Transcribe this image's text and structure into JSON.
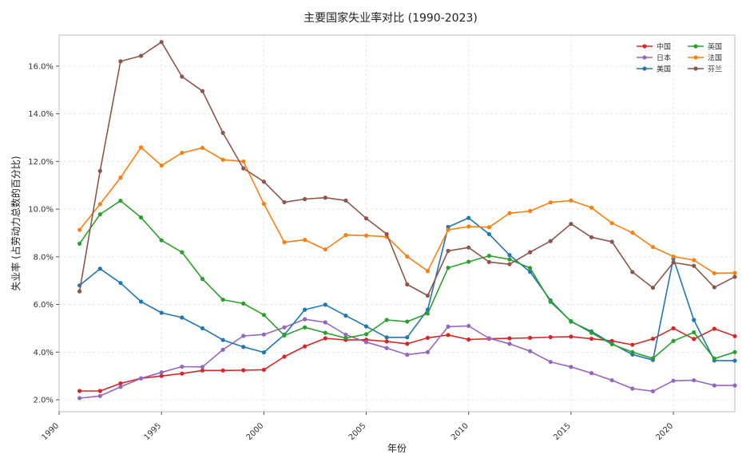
{
  "chart_data": {
    "type": "line",
    "title": "主要国家失业率对比 (1990-2023)",
    "xlabel": "年份",
    "ylabel": "失业率 (占劳动力总数的百分比)",
    "xlim": [
      1990,
      2023
    ],
    "ylim": [
      1.5,
      17.3
    ],
    "x_ticks": [
      1990,
      1995,
      2000,
      2005,
      2010,
      2015,
      2020
    ],
    "y_ticks": [
      {
        "v": 2,
        "label": "2.0%"
      },
      {
        "v": 4,
        "label": "4.0%"
      },
      {
        "v": 6,
        "label": "6.0%"
      },
      {
        "v": 8,
        "label": "8.0%"
      },
      {
        "v": 10,
        "label": "10.0%"
      },
      {
        "v": 12,
        "label": "12.0%"
      },
      {
        "v": 14,
        "label": "14.0%"
      },
      {
        "v": 16,
        "label": "16.0%"
      }
    ],
    "grid": true,
    "legend_position": "top-right",
    "x": [
      1991,
      1992,
      1993,
      1994,
      1995,
      1996,
      1997,
      1998,
      1999,
      2000,
      2001,
      2002,
      2003,
      2004,
      2005,
      2006,
      2007,
      2008,
      2009,
      2010,
      2011,
      2012,
      2013,
      2014,
      2015,
      2016,
      2017,
      2018,
      2019,
      2020,
      2021,
      2022,
      2023
    ],
    "series": [
      {
        "name": "中国",
        "color": "#d62728",
        "values": [
          2.37,
          2.37,
          2.69,
          2.9,
          3.0,
          3.1,
          3.23,
          3.23,
          3.24,
          3.26,
          3.81,
          4.24,
          4.58,
          4.51,
          4.52,
          4.45,
          4.35,
          4.6,
          4.72,
          4.53,
          4.56,
          4.58,
          4.6,
          4.63,
          4.65,
          4.56,
          4.47,
          4.31,
          4.56,
          5.0,
          4.55,
          4.98,
          4.67
        ]
      },
      {
        "name": "日本",
        "color": "#9467bd",
        "values": [
          2.07,
          2.16,
          2.54,
          2.9,
          3.15,
          3.39,
          3.38,
          4.1,
          4.68,
          4.74,
          5.04,
          5.38,
          5.25,
          4.73,
          4.42,
          4.17,
          3.89,
          4.0,
          5.07,
          5.1,
          4.58,
          4.35,
          4.04,
          3.59,
          3.38,
          3.12,
          2.82,
          2.47,
          2.36,
          2.8,
          2.82,
          2.6,
          2.6
        ]
      },
      {
        "name": "美国",
        "color": "#1f77b4",
        "values": [
          6.8,
          7.5,
          6.9,
          6.12,
          5.65,
          5.45,
          5.0,
          4.51,
          4.22,
          3.99,
          4.73,
          5.78,
          5.99,
          5.53,
          5.08,
          4.62,
          4.62,
          5.78,
          9.25,
          9.63,
          8.95,
          8.07,
          7.37,
          6.17,
          5.28,
          4.87,
          4.36,
          3.9,
          3.67,
          7.93,
          5.35,
          3.65,
          3.64
        ]
      },
      {
        "name": "英国",
        "color": "#2ca02c",
        "values": [
          8.55,
          9.78,
          10.35,
          9.65,
          8.69,
          8.19,
          7.07,
          6.2,
          6.04,
          5.56,
          4.7,
          5.04,
          4.81,
          4.59,
          4.75,
          5.35,
          5.28,
          5.62,
          7.54,
          7.79,
          8.04,
          7.89,
          7.53,
          6.11,
          5.3,
          4.81,
          4.33,
          4.0,
          3.74,
          4.47,
          4.83,
          3.73,
          4.0
        ]
      },
      {
        "name": "法国",
        "color": "#ff7f0e",
        "values": [
          9.13,
          10.21,
          11.32,
          12.59,
          11.83,
          12.36,
          12.57,
          12.07,
          12.0,
          10.22,
          8.61,
          8.71,
          8.31,
          8.91,
          8.89,
          8.84,
          8.01,
          7.4,
          9.13,
          9.27,
          9.24,
          9.83,
          9.92,
          10.28,
          10.36,
          10.06,
          9.41,
          9.01,
          8.41,
          8.01,
          7.86,
          7.31,
          7.32
        ]
      },
      {
        "name": "芬兰",
        "color": "#8c564b",
        "values": [
          6.55,
          11.6,
          16.2,
          16.43,
          17.01,
          15.56,
          14.95,
          13.2,
          11.71,
          11.15,
          10.29,
          10.42,
          10.48,
          10.36,
          9.61,
          8.95,
          6.84,
          6.37,
          8.25,
          8.39,
          7.78,
          7.69,
          8.19,
          8.66,
          9.38,
          8.82,
          8.63,
          7.36,
          6.7,
          7.76,
          7.62,
          6.72,
          7.16
        ]
      }
    ]
  }
}
